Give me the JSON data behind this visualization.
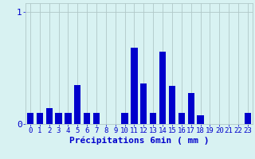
{
  "title": "",
  "xlabel": "Précipitations 6min ( mm )",
  "ylabel": "",
  "background_color": "#d8f2f2",
  "bar_color": "#0000cc",
  "grid_color": "#b0c8c8",
  "ylim": [
    0,
    1.08
  ],
  "xlim": [
    -0.5,
    23.5
  ],
  "yticks": [
    0,
    1
  ],
  "ytick_labels": [
    "0",
    "1"
  ],
  "xticks": [
    0,
    1,
    2,
    3,
    4,
    5,
    6,
    7,
    8,
    9,
    10,
    11,
    12,
    13,
    14,
    15,
    16,
    17,
    18,
    19,
    20,
    21,
    22,
    23
  ],
  "values": [
    0.1,
    0.1,
    0.14,
    0.1,
    0.1,
    0.35,
    0.1,
    0.1,
    0.0,
    0.0,
    0.1,
    0.68,
    0.36,
    0.1,
    0.65,
    0.34,
    0.1,
    0.28,
    0.08,
    0.0,
    0.0,
    0.0,
    0.0,
    0.1
  ],
  "bar_width": 0.7,
  "xlabel_fontsize": 8,
  "ytick_fontsize": 8,
  "xtick_fontsize": 6.5
}
